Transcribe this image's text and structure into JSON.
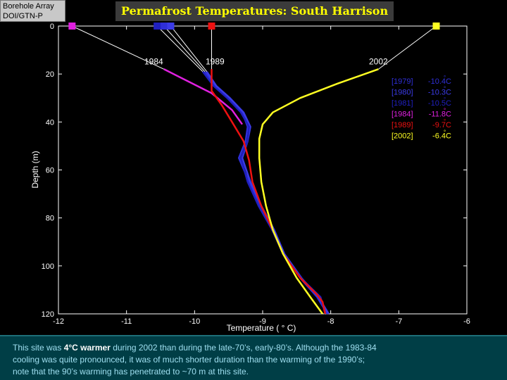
{
  "badge": {
    "line1": "Borehole Array",
    "line2": "DOI/GTN-P"
  },
  "caption": {
    "part1": "This site was ",
    "bold": "4°C warmer",
    "part2": " during 2002 than during the late-70’s, early-80’s.  Although the 1983-84",
    "line2": "cooling was quite pronounced, it was of much shorter duration than the warming of the 1990’s;",
    "line3": "note that the 90’s warming has penetrated to ~70 m at this site."
  },
  "chart_data": {
    "type": "line",
    "title": "Permafrost Temperatures:  South Harrison",
    "xlabel": "Temperature  ( ° C)",
    "ylabel": "Depth (m)",
    "xlim": [
      -12,
      -6
    ],
    "ylim": [
      0,
      120
    ],
    "y_reversed": true,
    "xticks": [
      "-12",
      "-11",
      "-10",
      "-9",
      "-8",
      "-7",
      "-6"
    ],
    "yticks": [
      "0",
      "20",
      "40",
      "60",
      "80",
      "100",
      "120"
    ],
    "grid": false,
    "legend_position": "top-right",
    "curve_labels": [
      {
        "text": "1984",
        "x": -10.6,
        "y": 16
      },
      {
        "text": "1989",
        "x": -9.7,
        "y": 16
      },
      {
        "text": "2002",
        "x": -7.3,
        "y": 16
      }
    ],
    "series": [
      {
        "name": "[1979]",
        "mean": "-10.4",
        "unit": "C",
        "color": "#2f2fd8",
        "surface_temp": -10.45,
        "points": [
          [
            -9.85,
            19
          ],
          [
            -9.7,
            25
          ],
          [
            -9.5,
            30
          ],
          [
            -9.3,
            36
          ],
          [
            -9.22,
            42
          ],
          [
            -9.25,
            48
          ],
          [
            -9.35,
            55
          ],
          [
            -9.2,
            65
          ],
          [
            -9.05,
            75
          ],
          [
            -8.85,
            85
          ],
          [
            -8.7,
            95
          ],
          [
            -8.45,
            105
          ],
          [
            -8.2,
            113
          ],
          [
            -8.05,
            120
          ]
        ]
      },
      {
        "name": "[1980]",
        "mean": "-10.3",
        "unit": "C",
        "color": "#3b3be8",
        "surface_temp": -10.35,
        "points": [
          [
            -9.82,
            19
          ],
          [
            -9.68,
            25
          ],
          [
            -9.48,
            30
          ],
          [
            -9.28,
            36
          ],
          [
            -9.18,
            42
          ],
          [
            -9.22,
            48
          ],
          [
            -9.3,
            55
          ],
          [
            -9.18,
            65
          ],
          [
            -9.02,
            75
          ],
          [
            -8.83,
            85
          ],
          [
            -8.68,
            95
          ],
          [
            -8.43,
            105
          ],
          [
            -8.18,
            113
          ],
          [
            -8.03,
            120
          ]
        ]
      },
      {
        "name": "[1981]",
        "mean": "-10.5",
        "unit": "C",
        "color": "#2020c0",
        "surface_temp": -10.55,
        "points": [
          [
            -9.88,
            19
          ],
          [
            -9.72,
            25
          ],
          [
            -9.52,
            30
          ],
          [
            -9.32,
            36
          ],
          [
            -9.2,
            42
          ],
          [
            -9.22,
            48
          ],
          [
            -9.32,
            55
          ],
          [
            -9.22,
            65
          ],
          [
            -9.06,
            75
          ],
          [
            -8.86,
            85
          ],
          [
            -8.7,
            95
          ],
          [
            -8.44,
            105
          ],
          [
            -8.15,
            113
          ],
          [
            -8.08,
            120
          ]
        ]
      },
      {
        "name": "[1984]",
        "mean": "-11.8",
        "unit": "C",
        "color": "#e020e0",
        "surface_temp": -11.8,
        "points": [
          [
            -10.45,
            18
          ],
          [
            -10.1,
            23
          ],
          [
            -9.75,
            28
          ],
          [
            -9.45,
            35
          ],
          [
            -9.3,
            41
          ]
        ]
      },
      {
        "name": "[1989]",
        "mean": "-9.7",
        "unit": "C",
        "color": "#ee1111",
        "surface_temp": -9.75,
        "points": [
          [
            -9.75,
            18
          ],
          [
            -9.75,
            27
          ],
          [
            -9.6,
            33
          ],
          [
            -9.45,
            40
          ],
          [
            -9.28,
            48
          ],
          [
            -9.2,
            56
          ],
          [
            -9.15,
            65
          ],
          [
            -9.02,
            75
          ],
          [
            -8.85,
            85
          ],
          [
            -8.7,
            95
          ],
          [
            -8.45,
            105
          ],
          [
            -8.2,
            112
          ],
          [
            -8.12,
            115
          ],
          [
            -8.08,
            120
          ]
        ]
      },
      {
        "name": "[2002]",
        "mean": "-6.4",
        "unit": "C",
        "color": "#ffff22",
        "surface_temp": -6.45,
        "points": [
          [
            -7.3,
            18
          ],
          [
            -7.9,
            24
          ],
          [
            -8.45,
            30
          ],
          [
            -8.85,
            36
          ],
          [
            -9.0,
            41
          ],
          [
            -9.05,
            47
          ],
          [
            -9.05,
            55
          ],
          [
            -9.02,
            65
          ],
          [
            -8.95,
            75
          ],
          [
            -8.85,
            85
          ],
          [
            -8.7,
            95
          ],
          [
            -8.5,
            105
          ],
          [
            -8.3,
            113
          ],
          [
            -8.12,
            120
          ]
        ]
      }
    ]
  }
}
